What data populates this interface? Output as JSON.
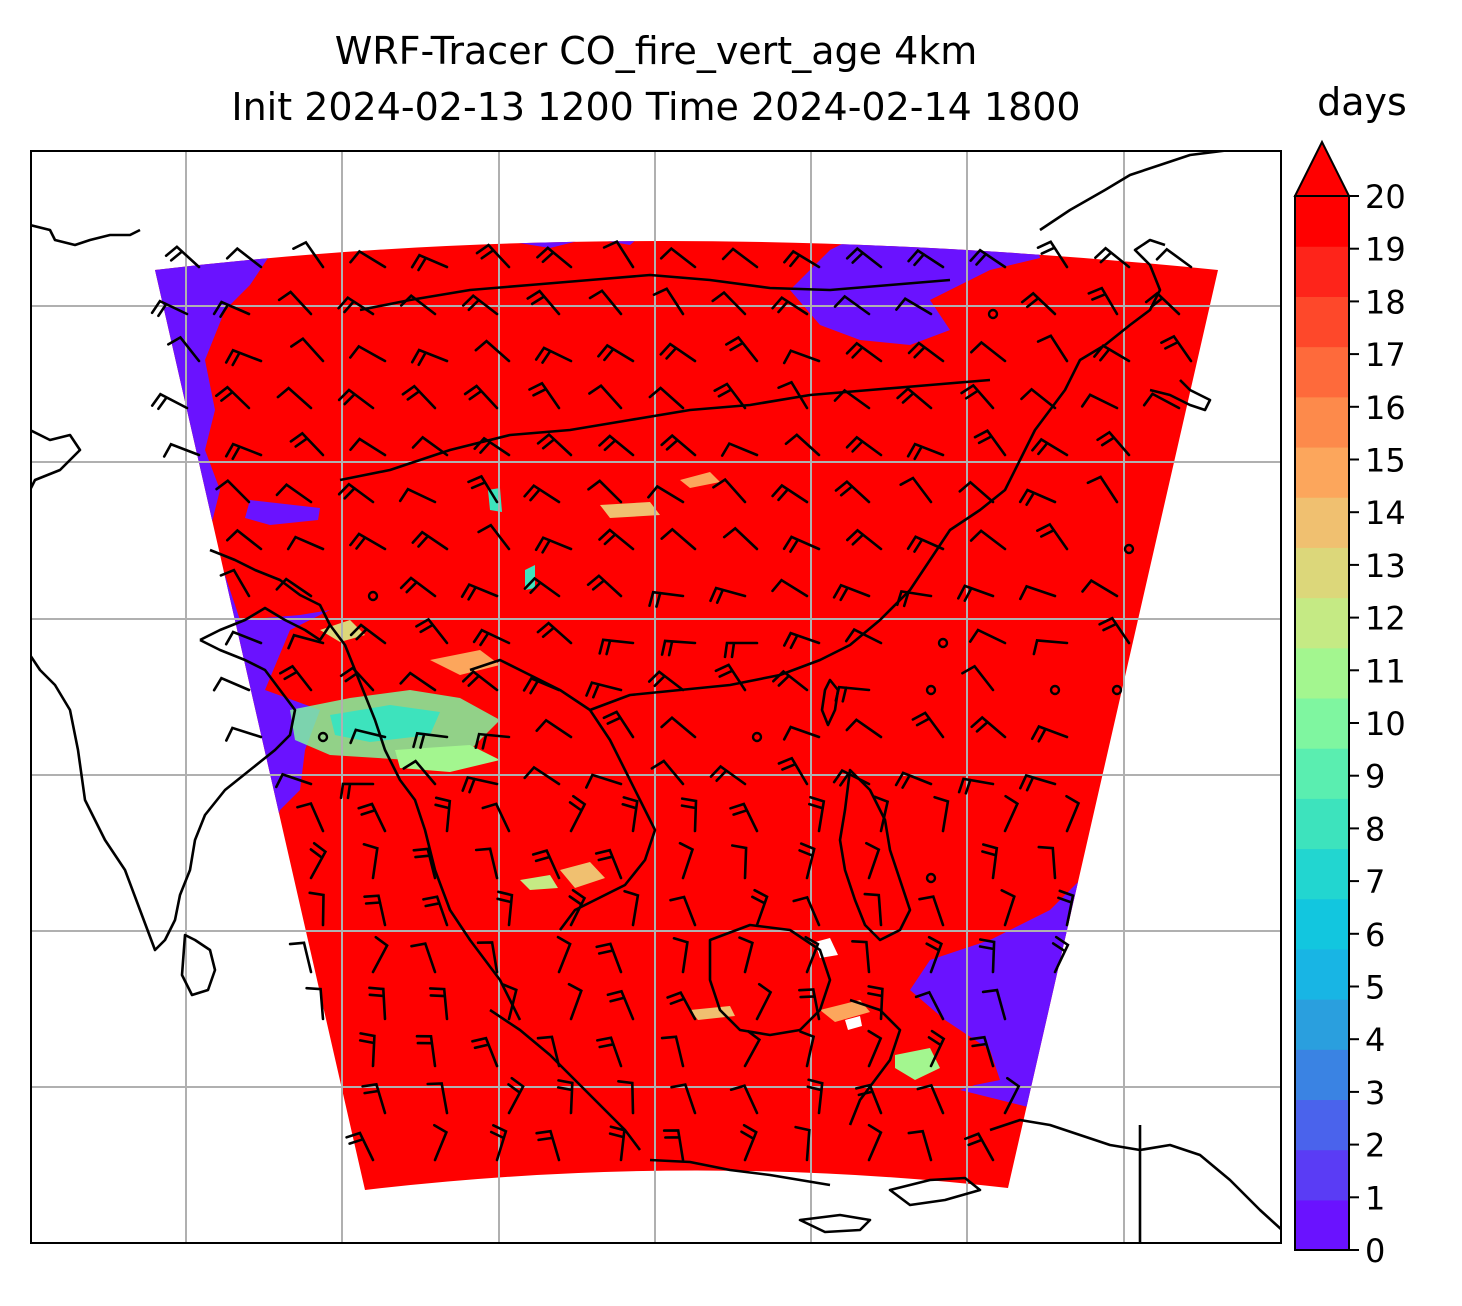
{
  "title": {
    "line1": "WRF-Tracer CO_fire_vert_age 4km",
    "line2": "Init 2024-02-13 1200 Time 2024-02-14 1800"
  },
  "colorbar": {
    "label": "days",
    "min": 0,
    "max": 20,
    "extend": "max",
    "ticks": [
      "0",
      "1",
      "2",
      "3",
      "4",
      "5",
      "6",
      "7",
      "8",
      "9",
      "10",
      "11",
      "12",
      "13",
      "14",
      "15",
      "16",
      "17",
      "18",
      "19",
      "20"
    ],
    "colors": [
      "#6a12ff",
      "#5a3cf5",
      "#4a63ec",
      "#3a83e3",
      "#2a9fde",
      "#18b5e4",
      "#12c6df",
      "#22d6d0",
      "#3de3bd",
      "#5aeeb0",
      "#7ff6a0",
      "#a3f68f",
      "#c5ea84",
      "#dcd77a",
      "#f0c070",
      "#fca65c",
      "#fd8a4b",
      "#fe6a3b",
      "#fe482a",
      "#fe241a",
      "#ff0000"
    ]
  },
  "map": {
    "field_color": "#ff0000",
    "low_age_color": "#6a12ff",
    "gridlines": true,
    "coastline_color": "#000000",
    "overlay": "wind barbs"
  }
}
